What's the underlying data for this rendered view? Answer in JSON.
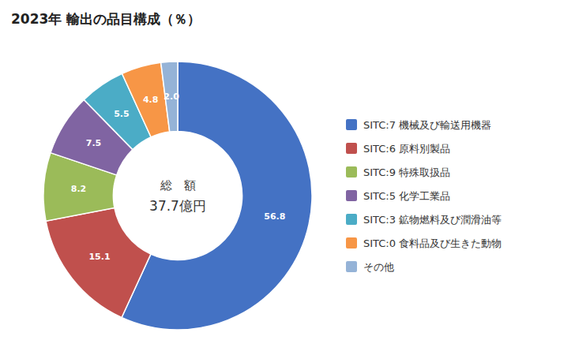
{
  "chart_data": {
    "type": "donut",
    "title": "2023年 輸出の品目構成（％）",
    "annotations": [
      "総　額",
      "37.7億円"
    ],
    "categories": [
      "SITC:7 機械及び輸送用機器",
      "SITC:6 原料別製品",
      "SITC:9 特殊取扱品",
      "SITC:5 化学工業品",
      "SITC:3 鉱物燃料及び潤滑油等",
      "SITC:0 食料品及び生きた動物",
      "その他"
    ],
    "values": [
      56.8,
      15.1,
      8.2,
      7.5,
      5.5,
      4.8,
      2.0
    ],
    "value_labels": [
      "56.8",
      "15.1",
      "8.2",
      "7.5",
      "5.5",
      "4.8",
      "2.0"
    ],
    "colors": [
      "#4472C4",
      "#C0504D",
      "#9BBB59",
      "#8064A2",
      "#4BACC6",
      "#F79646",
      "#95B3D7"
    ],
    "data_labels": true,
    "legend": "right"
  }
}
